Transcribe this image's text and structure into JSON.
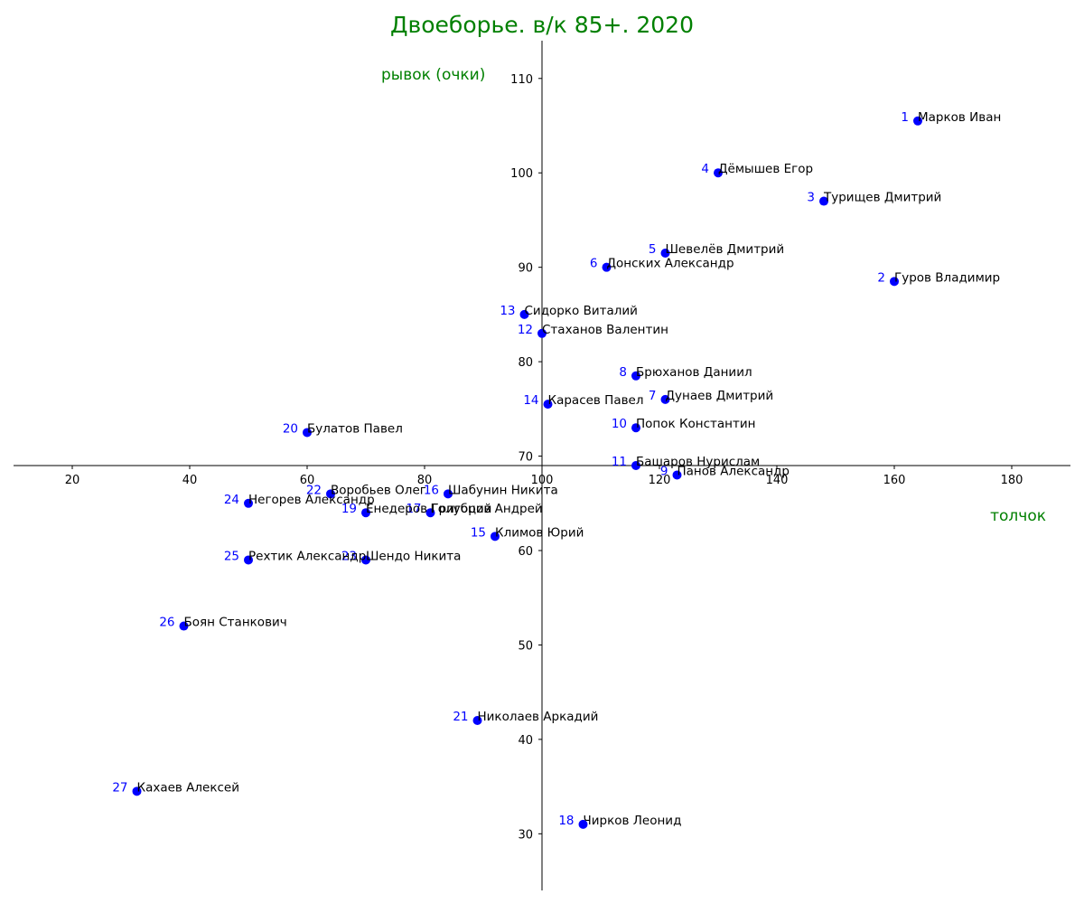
{
  "chart_data": {
    "type": "scatter",
    "title": "Двоеборье. в/к 85+. 2020",
    "xlabel": "толчок",
    "ylabel": "рывок (очки)",
    "xlim": [
      10,
      190
    ],
    "ylim": [
      24,
      114
    ],
    "x_ticks": [
      20,
      40,
      60,
      80,
      100,
      120,
      140,
      160,
      180
    ],
    "y_ticks": [
      30,
      40,
      50,
      60,
      70,
      80,
      90,
      100,
      110
    ],
    "axis_origin": [
      100,
      69
    ],
    "grid": false,
    "colors": {
      "title": "#008000",
      "axis_labels": "#008000",
      "points": "#0000ff",
      "rank_labels": "#0000ff",
      "name_labels": "#000000"
    },
    "points": [
      {
        "rank": "1",
        "name": "Марков Иван",
        "x": 164,
        "y": 105.5
      },
      {
        "rank": "2",
        "name": "Гуров Владимир",
        "x": 160,
        "y": 88.5
      },
      {
        "rank": "3",
        "name": "Турищев Дмитрий",
        "x": 148,
        "y": 97
      },
      {
        "rank": "4",
        "name": "Дёмышев Егор",
        "x": 130,
        "y": 100
      },
      {
        "rank": "5",
        "name": "Шевелёв Дмитрий",
        "x": 121,
        "y": 91.5
      },
      {
        "rank": "6",
        "name": "Донских Александр",
        "x": 111,
        "y": 90
      },
      {
        "rank": "7",
        "name": "Дунаев Дмитрий",
        "x": 121,
        "y": 76
      },
      {
        "rank": "8",
        "name": "Брюханов Даниил",
        "x": 116,
        "y": 78.5
      },
      {
        "rank": "9",
        "name": "Панов Александр",
        "x": 123,
        "y": 68
      },
      {
        "rank": "10",
        "name": "Попок Константин",
        "x": 116,
        "y": 73
      },
      {
        "rank": "11",
        "name": "Башаров Нурислам",
        "x": 116,
        "y": 69
      },
      {
        "rank": "12",
        "name": "Стаханов Валентин",
        "x": 100,
        "y": 83
      },
      {
        "rank": "13",
        "name": "Сидорко Виталий",
        "x": 97,
        "y": 85
      },
      {
        "rank": "14",
        "name": "Карасев Павел",
        "x": 101,
        "y": 75.5
      },
      {
        "rank": "15",
        "name": "Климов Юрий",
        "x": 92,
        "y": 61.5
      },
      {
        "rank": "16",
        "name": "Шабунин Никита",
        "x": 84,
        "y": 66
      },
      {
        "rank": "17",
        "name": "Голубцов Андрей",
        "x": 81,
        "y": 64
      },
      {
        "rank": "18",
        "name": "Чирков Леонид",
        "x": 107,
        "y": 31
      },
      {
        "rank": "19",
        "name": "Енедеров Григорий",
        "x": 70,
        "y": 64
      },
      {
        "rank": "20",
        "name": "Булатов Павел",
        "x": 60,
        "y": 72.5
      },
      {
        "rank": "21",
        "name": "Николаев Аркадий",
        "x": 89,
        "y": 42
      },
      {
        "rank": "22",
        "name": "Воробьев Олег",
        "x": 64,
        "y": 66
      },
      {
        "rank": "23",
        "name": "Шендо Никита",
        "x": 70,
        "y": 59
      },
      {
        "rank": "24",
        "name": "Негорев Александр",
        "x": 50,
        "y": 65
      },
      {
        "rank": "25",
        "name": "Рехтик Александр",
        "x": 50,
        "y": 59
      },
      {
        "rank": "26",
        "name": "Боян Станкович",
        "x": 39,
        "y": 52
      },
      {
        "rank": "27",
        "name": "Кахаев Алексей",
        "x": 31,
        "y": 34.5
      }
    ]
  }
}
